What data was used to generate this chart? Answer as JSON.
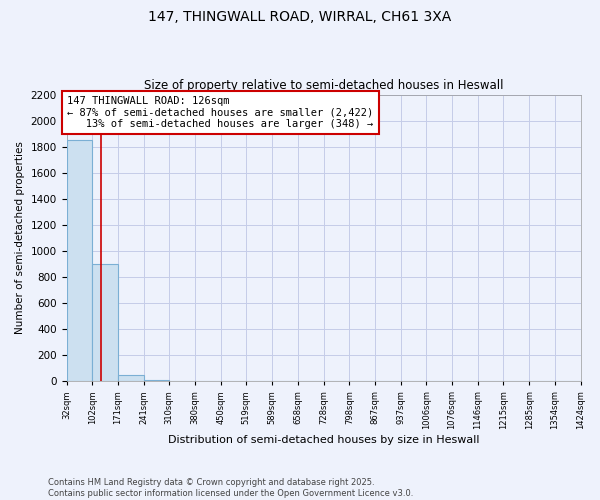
{
  "title_line1": "147, THINGWALL ROAD, WIRRAL, CH61 3XA",
  "title_line2": "Size of property relative to semi-detached houses in Heswall",
  "xlabel": "Distribution of semi-detached houses by size in Heswall",
  "ylabel": "Number of semi-detached properties",
  "bin_edges": [
    32,
    102,
    171,
    241,
    310,
    380,
    450,
    519,
    589,
    658,
    728,
    798,
    867,
    937,
    1006,
    1076,
    1146,
    1215,
    1285,
    1354,
    1424
  ],
  "bin_counts": [
    1850,
    900,
    50,
    8,
    0,
    0,
    0,
    0,
    0,
    0,
    0,
    0,
    0,
    0,
    0,
    0,
    0,
    0,
    0,
    0
  ],
  "bar_color": "#cce0f0",
  "bar_edge_color": "#7bafd4",
  "property_size": 126,
  "red_line_color": "#cc0000",
  "annotation_line1": "147 THINGWALL ROAD: 126sqm",
  "annotation_line2": "← 87% of semi-detached houses are smaller (2,422)",
  "annotation_line3": "   13% of semi-detached houses are larger (348) →",
  "annotation_box_color": "#ffffff",
  "annotation_border_color": "#cc0000",
  "ylim": [
    0,
    2200
  ],
  "yticks": [
    0,
    200,
    400,
    600,
    800,
    1000,
    1200,
    1400,
    1600,
    1800,
    2000,
    2200
  ],
  "footer_text": "Contains HM Land Registry data © Crown copyright and database right 2025.\nContains public sector information licensed under the Open Government Licence v3.0.",
  "background_color": "#eef2fc",
  "grid_color": "#c5cce8"
}
